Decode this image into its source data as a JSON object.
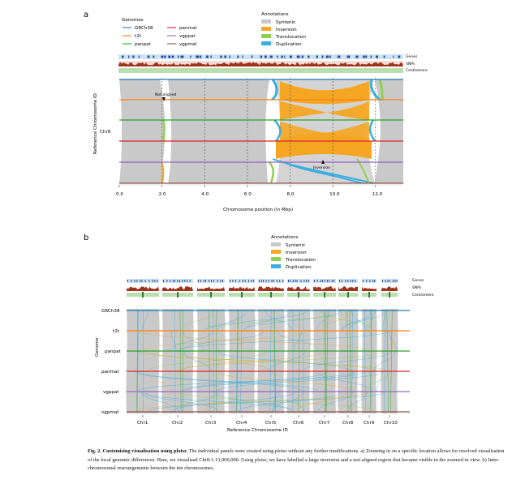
{
  "panel_a": {
    "label": "a",
    "legend": {
      "genomes_title": "Genomes",
      "genomes": [
        {
          "name": "GRCh38",
          "color": "#1f77b4"
        },
        {
          "name": "t2t",
          "color": "#ff7f0e"
        },
        {
          "name": "panpat",
          "color": "#2ca02c"
        },
        {
          "name": "panmat",
          "color": "#d62728"
        },
        {
          "name": "vgppat",
          "color": "#9467bd"
        },
        {
          "name": "vgpmat",
          "color": "#8c564b"
        }
      ],
      "annotations_title": "Annotations",
      "annotations": [
        {
          "name": "Syntenic",
          "color": "#c8c8c8"
        },
        {
          "name": "Inversion",
          "color": "#f5a623"
        },
        {
          "name": "Translocation",
          "color": "#8fd14f"
        },
        {
          "name": "Duplication",
          "color": "#3aaee0"
        }
      ]
    },
    "track_labels": [
      "Genes",
      "SNPs",
      "Centromere"
    ],
    "y_axis_label": "Reference Chromosome ID",
    "y_tick": "Chr8",
    "x_axis_label": "Chromosome position (in Mbp)",
    "x_ticks": [
      "0.0",
      "2.0",
      "4.0",
      "6.0",
      "8.0",
      "10.0",
      "12.0"
    ],
    "annotation_not_aligned": "Not aligned",
    "annotation_inversion": "Inversion"
  },
  "panel_b": {
    "label": "b",
    "legend_title": "Annotations",
    "legend": [
      {
        "name": "Syntenic",
        "color": "#c8c8c8"
      },
      {
        "name": "Inversion",
        "color": "#f5a623"
      },
      {
        "name": "Translocation",
        "color": "#8fd14f"
      },
      {
        "name": "Duplication",
        "color": "#3aaee0"
      }
    ],
    "track_labels": [
      "Genes",
      "SNPs",
      "Centromere"
    ],
    "genomes": [
      "GRCh38",
      "t2t",
      "panpat",
      "panmat",
      "vgppat",
      "vgpmat"
    ],
    "genome_colors": [
      "#1f77b4",
      "#ff7f0e",
      "#2ca02c",
      "#d62728",
      "#9467bd",
      "#8c564b"
    ],
    "y_axis_label": "Genome",
    "x_axis_label": "Reference Chromosome ID",
    "chromosomes": [
      "Chr1",
      "Chr2",
      "Chr3",
      "Chr4",
      "Chr5",
      "Chr6",
      "Chr7",
      "Chr8",
      "Chr9",
      "Chr10"
    ]
  },
  "caption": {
    "title": "Fig. 2. Customising visualisation using plotsr.",
    "text": " The individual panels were created using plotsr without any further modifications. a) Zooming in on a specific location allows for resolved visualisation of the local genomic differences. Here, we visualised Chr8:1-13,000,000. Using plotsr, we have labelled a large inversion and a not-aligned region that became visible in the zoomed in view. b) Inter-chromosomal rearrangements between the ten chromosomes."
  }
}
